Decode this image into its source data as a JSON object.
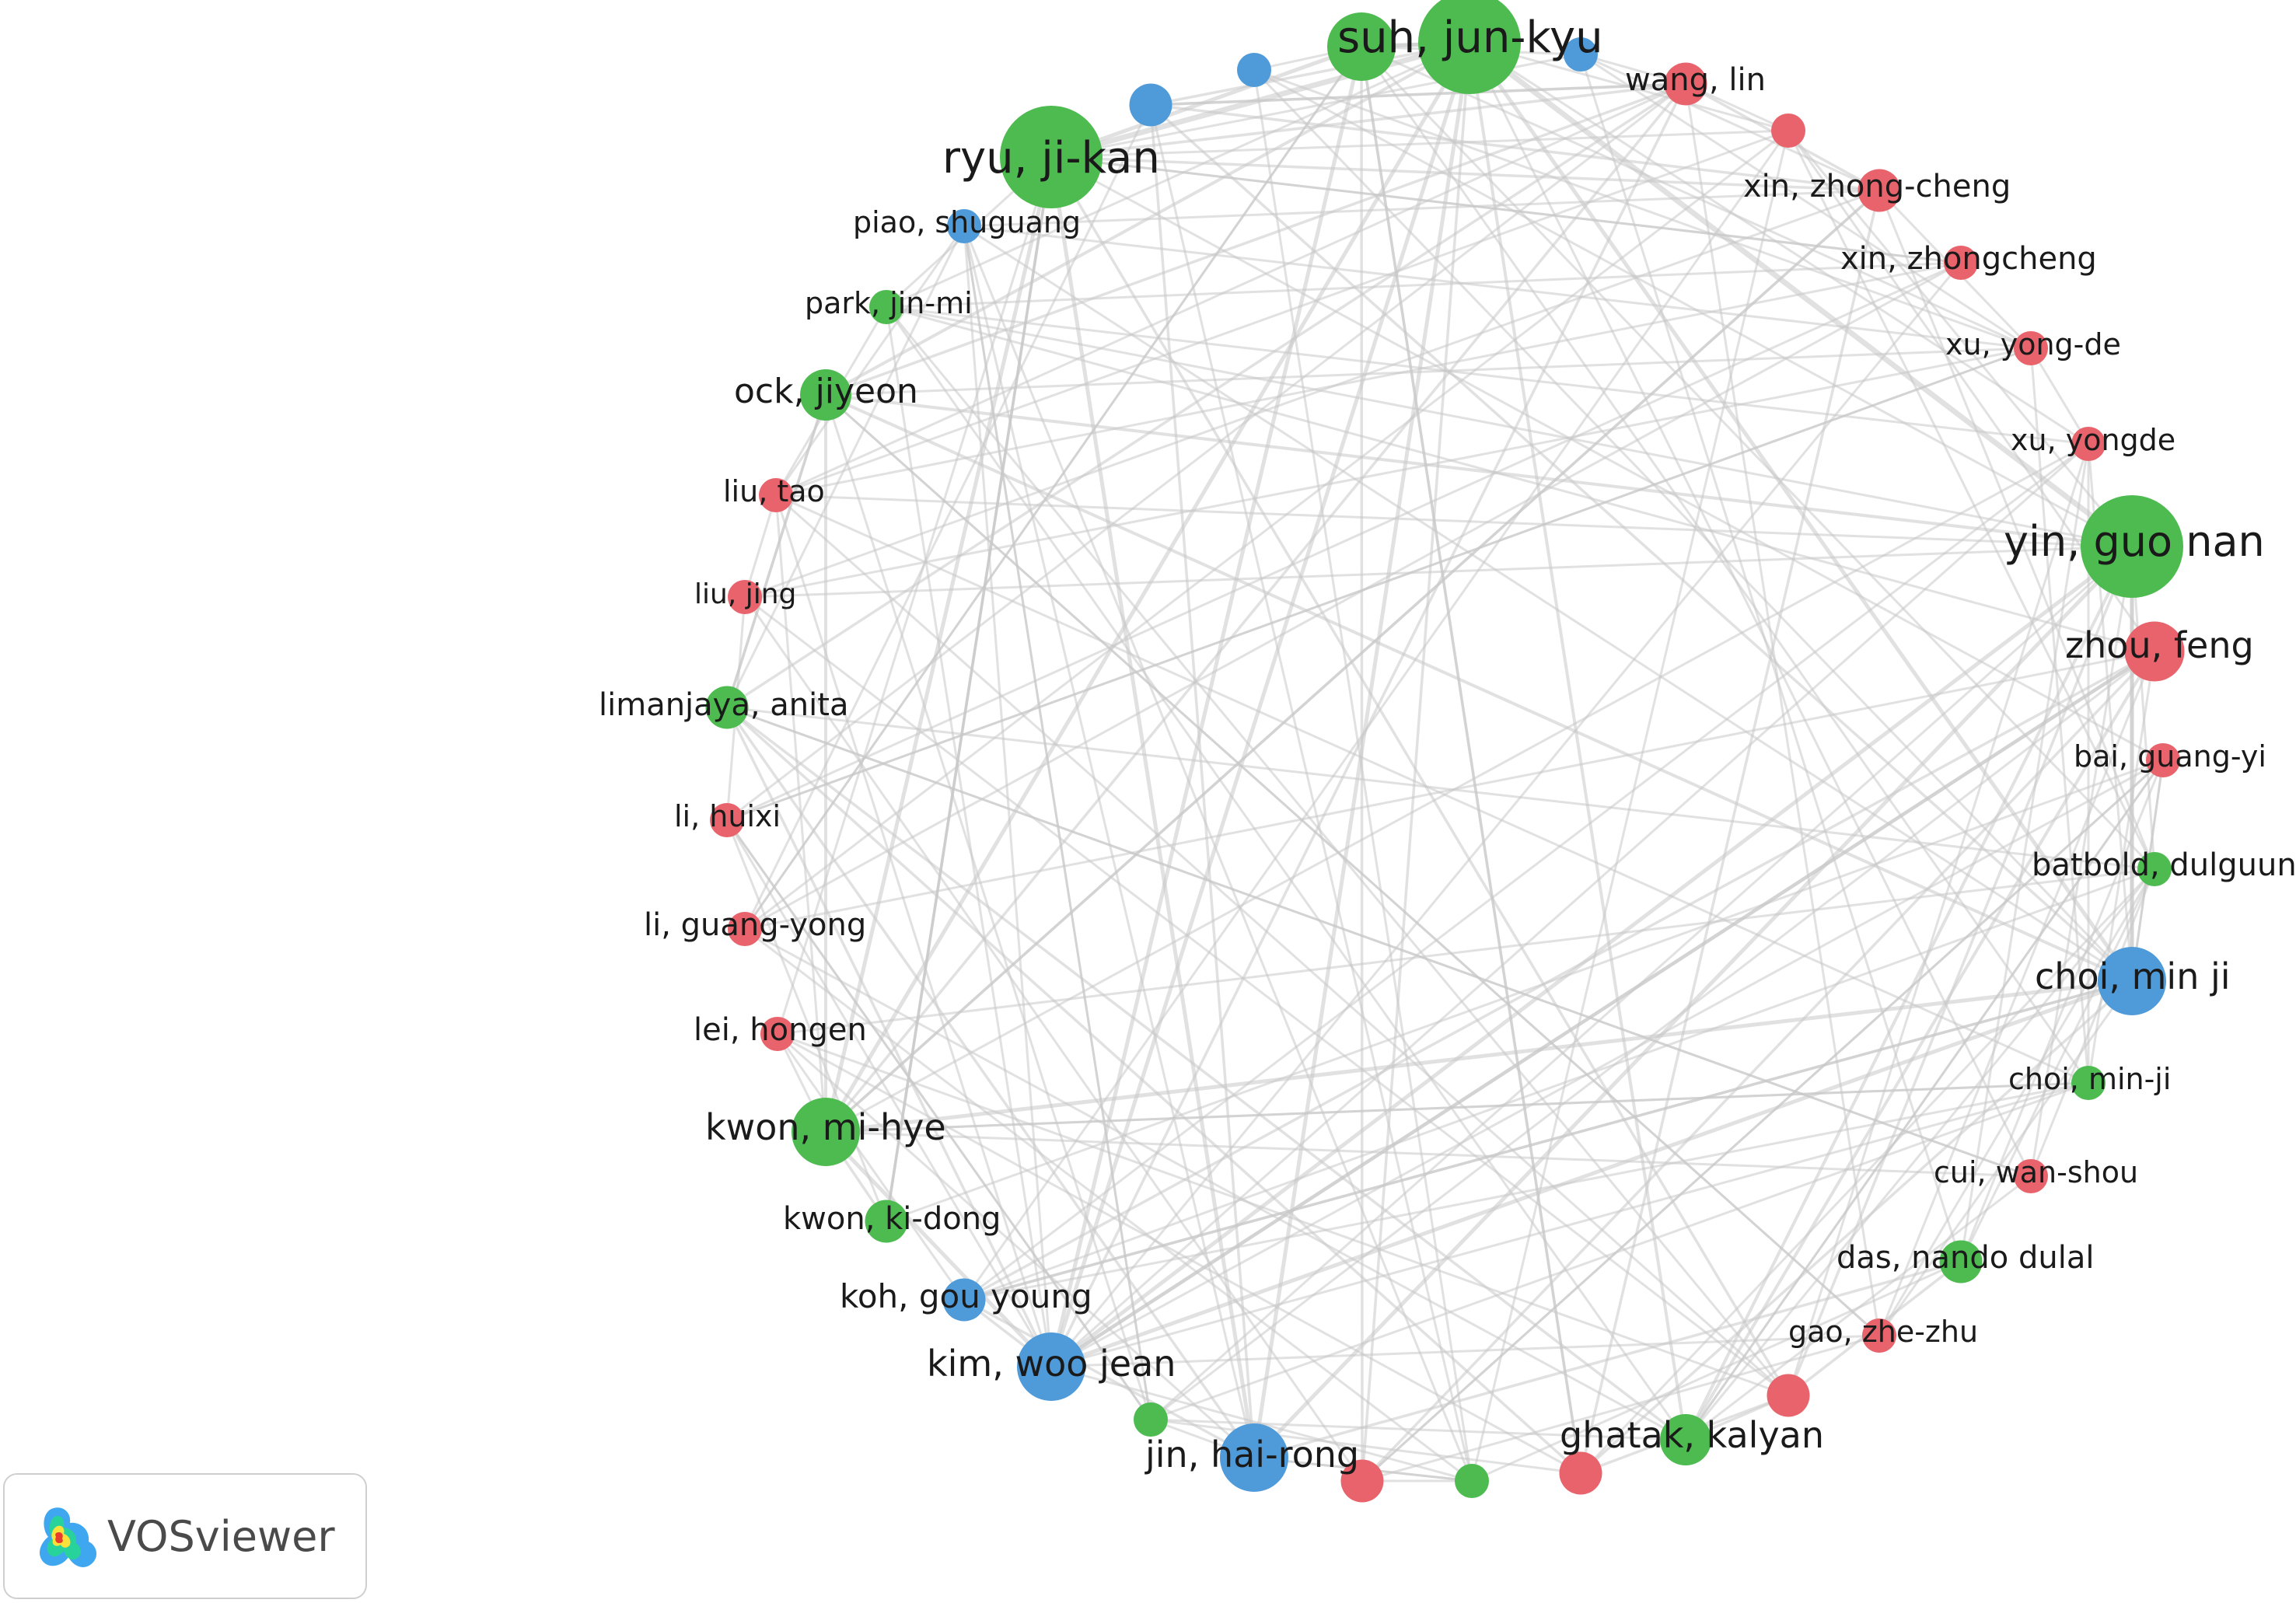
{
  "colors": {
    "red": "#e8636b",
    "green": "#4dbb50",
    "blue": "#4f9ad8",
    "edge": "#c8c8c8"
  },
  "brand": {
    "name": "VOSviewer",
    "icon": "vosviewer-logo-icon"
  },
  "chart_data": {
    "type": "network",
    "nodes": [
      {
        "label": "suh, jun-kyu",
        "cluster": "green",
        "weight": 10
      },
      {
        "label": "",
        "cluster": "blue",
        "weight": 2
      },
      {
        "label": "wang, lin",
        "cluster": "red",
        "weight": 3
      },
      {
        "label": "",
        "cluster": "red",
        "weight": 2
      },
      {
        "label": "xin, zhong-cheng",
        "cluster": "red",
        "weight": 3
      },
      {
        "label": "xin, zhongcheng",
        "cluster": "red",
        "weight": 2
      },
      {
        "label": "xu, yong-de",
        "cluster": "red",
        "weight": 2
      },
      {
        "label": "xu, yongde",
        "cluster": "red",
        "weight": 2
      },
      {
        "label": "yin, guo nan",
        "cluster": "green",
        "weight": 10
      },
      {
        "label": "zhou, feng",
        "cluster": "red",
        "weight": 5
      },
      {
        "label": "bai, guang-yi",
        "cluster": "red",
        "weight": 2
      },
      {
        "label": "batbold, dulguun",
        "cluster": "green",
        "weight": 2
      },
      {
        "label": "choi, min ji",
        "cluster": "blue",
        "weight": 6
      },
      {
        "label": "choi, min-ji",
        "cluster": "green",
        "weight": 2
      },
      {
        "label": "cui, wan-shou",
        "cluster": "red",
        "weight": 2
      },
      {
        "label": "das, nando dulal",
        "cluster": "green",
        "weight": 3
      },
      {
        "label": "gao, zhe-zhu",
        "cluster": "red",
        "weight": 2
      },
      {
        "label": "",
        "cluster": "red",
        "weight": 3
      },
      {
        "label": "ghatak, kalyan",
        "cluster": "green",
        "weight": 4
      },
      {
        "label": "",
        "cluster": "red",
        "weight": 3
      },
      {
        "label": "",
        "cluster": "green",
        "weight": 2
      },
      {
        "label": "",
        "cluster": "red",
        "weight": 3
      },
      {
        "label": "jin, hai-rong",
        "cluster": "blue",
        "weight": 6
      },
      {
        "label": "",
        "cluster": "green",
        "weight": 2
      },
      {
        "label": "kim, woo jean",
        "cluster": "blue",
        "weight": 6
      },
      {
        "label": "koh, gou young",
        "cluster": "blue",
        "weight": 3
      },
      {
        "label": "kwon, ki-dong",
        "cluster": "green",
        "weight": 3
      },
      {
        "label": "kwon, mi-hye",
        "cluster": "green",
        "weight": 6
      },
      {
        "label": "lei, hongen",
        "cluster": "red",
        "weight": 2
      },
      {
        "label": "li, guang-yong",
        "cluster": "red",
        "weight": 2
      },
      {
        "label": "li, huixi",
        "cluster": "red",
        "weight": 2
      },
      {
        "label": "limanjaya, anita",
        "cluster": "green",
        "weight": 3
      },
      {
        "label": "liu, jing",
        "cluster": "red",
        "weight": 2
      },
      {
        "label": "liu, tao",
        "cluster": "red",
        "weight": 2
      },
      {
        "label": "ock, jiyeon",
        "cluster": "green",
        "weight": 4
      },
      {
        "label": "park, jin-mi",
        "cluster": "green",
        "weight": 2
      },
      {
        "label": "piao, shuguang",
        "cluster": "blue",
        "weight": 2
      },
      {
        "label": "ryu, ji-kan",
        "cluster": "green",
        "weight": 10
      },
      {
        "label": "",
        "cluster": "blue",
        "weight": 3
      },
      {
        "label": "",
        "cluster": "blue",
        "weight": 2
      },
      {
        "label": "",
        "cluster": "green",
        "weight": 6
      }
    ]
  }
}
